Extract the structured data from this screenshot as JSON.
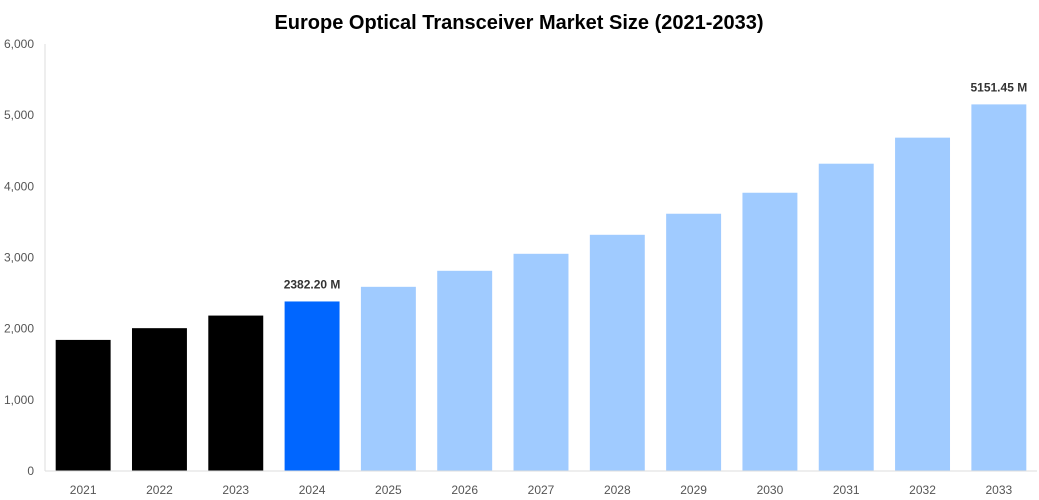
{
  "chart_data": {
    "type": "bar",
    "title": "Europe Optical Transceiver Market Size (2021-2033)",
    "xlabel": "",
    "ylabel": "",
    "categories": [
      "2021",
      "2022",
      "2023",
      "2024",
      "2025",
      "2026",
      "2027",
      "2028",
      "2029",
      "2030",
      "2031",
      "2032",
      "2033"
    ],
    "values": [
      1842,
      2007,
      2184,
      2382.2,
      2588,
      2813,
      3052,
      3319,
      3615,
      3910,
      4318,
      4684,
      5151.45
    ],
    "bar_colors": [
      "#000000",
      "#000000",
      "#000000",
      "#0066ff",
      "#a0cbff",
      "#a0cbff",
      "#a0cbff",
      "#a0cbff",
      "#a0cbff",
      "#a0cbff",
      "#a0cbff",
      "#a0cbff",
      "#a0cbff"
    ],
    "data_labels": {
      "3": "2382.20 M",
      "12": "5151.45 M"
    },
    "ylim": [
      0,
      6000
    ],
    "yticks": [
      "0",
      "1,000",
      "2,000",
      "3,000",
      "4,000",
      "5,000",
      "6,000"
    ],
    "grid": false,
    "legend": "none"
  }
}
